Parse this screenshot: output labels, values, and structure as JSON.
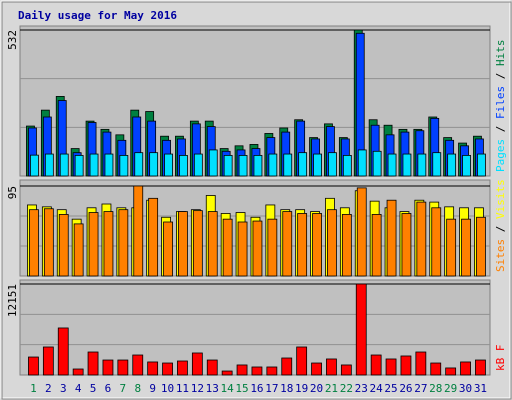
{
  "chart_data": [
    {
      "type": "bar",
      "title": "Daily usage for May 2016",
      "legend_separator": " / ",
      "ylim": [
        0,
        532
      ],
      "yticks": [
        532
      ],
      "series": [
        {
          "name": "Hits",
          "color": "#008040",
          "values": [
            182,
            240,
            290,
            100,
            200,
            170,
            150,
            240,
            235,
            145,
            145,
            200,
            200,
            100,
            110,
            115,
            155,
            175,
            205,
            140,
            190,
            140,
            532,
            205,
            185,
            170,
            170,
            215,
            140,
            120,
            145
          ]
        },
        {
          "name": "Files",
          "color": "#0040ff",
          "values": [
            175,
            215,
            275,
            85,
            195,
            160,
            130,
            215,
            200,
            130,
            135,
            190,
            180,
            90,
            95,
            100,
            140,
            160,
            200,
            135,
            180,
            135,
            520,
            185,
            150,
            160,
            165,
            210,
            130,
            110,
            135
          ]
        },
        {
          "name": "Pages",
          "color": "#00e0ff",
          "values": [
            76,
            80,
            80,
            75,
            80,
            80,
            75,
            85,
            85,
            80,
            75,
            80,
            95,
            75,
            75,
            75,
            80,
            80,
            85,
            80,
            85,
            75,
            95,
            90,
            80,
            80,
            80,
            85,
            80,
            75,
            80
          ]
        }
      ]
    },
    {
      "type": "bar",
      "ylim": [
        0,
        95
      ],
      "yticks": [
        95
      ],
      "series": [
        {
          "name": "Visits",
          "color": "#ffff00",
          "values": [
            75,
            73,
            70,
            60,
            72,
            76,
            72,
            72,
            80,
            62,
            68,
            70,
            85,
            66,
            67,
            62,
            75,
            70,
            70,
            68,
            82,
            72,
            90,
            79,
            72,
            68,
            80,
            78,
            73,
            72,
            72
          ]
        },
        {
          "name": "Sites",
          "color": "#ff8000",
          "values": [
            70,
            71,
            65,
            55,
            67,
            68,
            70,
            95,
            82,
            57,
            68,
            69,
            68,
            60,
            57,
            58,
            60,
            68,
            66,
            66,
            70,
            65,
            93,
            65,
            80,
            66,
            78,
            72,
            60,
            60,
            62
          ]
        }
      ]
    },
    {
      "type": "bar",
      "ylim": [
        0,
        12151
      ],
      "yticks": [
        12151
      ],
      "categories": [
        "1",
        "2",
        "3",
        "4",
        "5",
        "6",
        "7",
        "8",
        "9",
        "10",
        "11",
        "12",
        "13",
        "14",
        "15",
        "16",
        "17",
        "18",
        "19",
        "20",
        "21",
        "22",
        "23",
        "24",
        "25",
        "26",
        "27",
        "28",
        "29",
        "30",
        "31"
      ],
      "weekend_indices": [
        0,
        6,
        7,
        13,
        14,
        20,
        21,
        27,
        28
      ],
      "weekend_color": "#008040",
      "weekday_color": "#0000a0",
      "series": [
        {
          "name": "kB F",
          "color": "#ff0000",
          "values": [
            2400,
            3740,
            6280,
            800,
            3070,
            2000,
            2000,
            2670,
            1740,
            1600,
            1870,
            2940,
            2000,
            530,
            1340,
            1070,
            1070,
            2270,
            3740,
            1600,
            2140,
            1340,
            12151,
            2670,
            2140,
            2540,
            3070,
            1600,
            940,
            1740,
            2000
          ]
        }
      ]
    }
  ]
}
